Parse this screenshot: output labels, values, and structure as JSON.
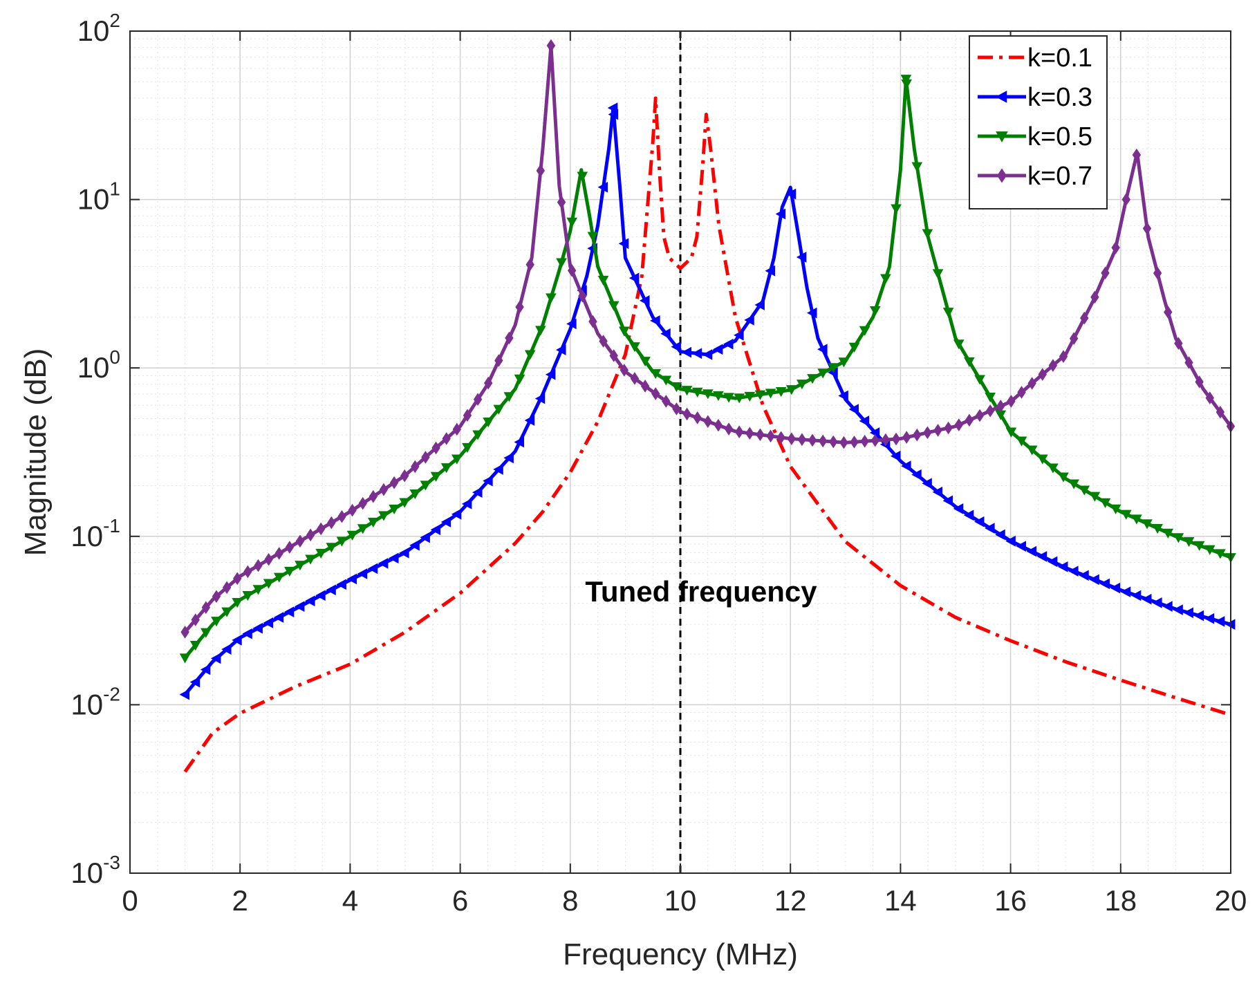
{
  "chart_data": {
    "type": "line",
    "title": "",
    "xlabel": "Frequency (MHz)",
    "ylabel": "Magnitude (dB)",
    "xlim": [
      0,
      20
    ],
    "ylim": [
      0.001,
      100
    ],
    "yscale": "log",
    "grid": true,
    "minor_grid": true,
    "legend_position": "top-right",
    "xticks": [
      0,
      2,
      4,
      6,
      8,
      10,
      12,
      14,
      16,
      18,
      20
    ],
    "yticks": [
      {
        "base": "10",
        "exp": "-3",
        "value": 0.001
      },
      {
        "base": "10",
        "exp": "-2",
        "value": 0.01
      },
      {
        "base": "10",
        "exp": "-1",
        "value": 0.1
      },
      {
        "base": "10",
        "exp": "0",
        "value": 1
      },
      {
        "base": "10",
        "exp": "1",
        "value": 10
      },
      {
        "base": "10",
        "exp": "2",
        "value": 100
      }
    ],
    "annotation": {
      "text": "Tuned frequency",
      "x": 10
    },
    "vline": {
      "x": 10,
      "style": "dashed",
      "color": "#000000"
    },
    "series": [
      {
        "name": "k=0.1",
        "color": "#ff0000",
        "style": "dashdot",
        "marker": "none",
        "points": [
          [
            1,
            0.004
          ],
          [
            1.5,
            0.0068
          ],
          [
            2,
            0.0089
          ],
          [
            3,
            0.0128
          ],
          [
            4,
            0.0174
          ],
          [
            5,
            0.027
          ],
          [
            6,
            0.046
          ],
          [
            7,
            0.091
          ],
          [
            7.5,
            0.14
          ],
          [
            8,
            0.24
          ],
          [
            8.5,
            0.48
          ],
          [
            9,
            1.2
          ],
          [
            9.3,
            3.5
          ],
          [
            9.5,
            22
          ],
          [
            9.55,
            40
          ],
          [
            9.62,
            15
          ],
          [
            9.7,
            6
          ],
          [
            9.8,
            4.5
          ],
          [
            10,
            3.9
          ],
          [
            10.2,
            4.5
          ],
          [
            10.3,
            6
          ],
          [
            10.4,
            15
          ],
          [
            10.47,
            32
          ],
          [
            10.55,
            20
          ],
          [
            10.7,
            7
          ],
          [
            11,
            2
          ],
          [
            11.5,
            0.6
          ],
          [
            12,
            0.26
          ],
          [
            13,
            0.093
          ],
          [
            14,
            0.051
          ],
          [
            15,
            0.033
          ],
          [
            16,
            0.024
          ],
          [
            17,
            0.018
          ],
          [
            18,
            0.014
          ],
          [
            19,
            0.011
          ],
          [
            20,
            0.0087
          ]
        ]
      },
      {
        "name": "k=0.3",
        "color": "#0000ff",
        "style": "solid",
        "marker": "triangle-left",
        "points": [
          [
            1,
            0.0115
          ],
          [
            1.5,
            0.018
          ],
          [
            2,
            0.025
          ],
          [
            3,
            0.037
          ],
          [
            4,
            0.055
          ],
          [
            5,
            0.08
          ],
          [
            6,
            0.14
          ],
          [
            7,
            0.32
          ],
          [
            7.5,
            0.7
          ],
          [
            8,
            1.7
          ],
          [
            8.3,
            3.5
          ],
          [
            8.5,
            7
          ],
          [
            8.7,
            20
          ],
          [
            8.78,
            35
          ],
          [
            8.9,
            12
          ],
          [
            9,
            4.5
          ],
          [
            9.5,
            2
          ],
          [
            10,
            1.25
          ],
          [
            10.5,
            1.2
          ],
          [
            11,
            1.45
          ],
          [
            11.5,
            2.5
          ],
          [
            11.7,
            4.5
          ],
          [
            11.85,
            9
          ],
          [
            12,
            11.8
          ],
          [
            12.15,
            6
          ],
          [
            12.3,
            3
          ],
          [
            12.5,
            1.5
          ],
          [
            13,
            0.65
          ],
          [
            14,
            0.28
          ],
          [
            15,
            0.15
          ],
          [
            16,
            0.094
          ],
          [
            17,
            0.065
          ],
          [
            18,
            0.048
          ],
          [
            19,
            0.037
          ],
          [
            20,
            0.03
          ]
        ]
      },
      {
        "name": "k=0.5",
        "color": "#008000",
        "style": "solid",
        "marker": "triangle-down",
        "points": [
          [
            1,
            0.019
          ],
          [
            1.5,
            0.03
          ],
          [
            2,
            0.042
          ],
          [
            3,
            0.065
          ],
          [
            4,
            0.1
          ],
          [
            5,
            0.16
          ],
          [
            6,
            0.3
          ],
          [
            7,
            0.75
          ],
          [
            7.5,
            1.8
          ],
          [
            7.8,
            3.8
          ],
          [
            8,
            6.5
          ],
          [
            8.2,
            15
          ],
          [
            8.35,
            8
          ],
          [
            8.5,
            4
          ],
          [
            9,
            1.6
          ],
          [
            9.5,
            0.95
          ],
          [
            10,
            0.75
          ],
          [
            11,
            0.66
          ],
          [
            12,
            0.74
          ],
          [
            13,
            1.1
          ],
          [
            13.5,
            2
          ],
          [
            13.8,
            4
          ],
          [
            14,
            15
          ],
          [
            14.1,
            52
          ],
          [
            14.25,
            20
          ],
          [
            14.5,
            6
          ],
          [
            15,
            1.5
          ],
          [
            16,
            0.42
          ],
          [
            17,
            0.22
          ],
          [
            18,
            0.14
          ],
          [
            19,
            0.1
          ],
          [
            20,
            0.075
          ]
        ]
      },
      {
        "name": "k=0.7",
        "color": "#7b2f8f",
        "style": "solid",
        "marker": "diamond",
        "points": [
          [
            1,
            0.027
          ],
          [
            1.5,
            0.042
          ],
          [
            2,
            0.058
          ],
          [
            3,
            0.09
          ],
          [
            4,
            0.14
          ],
          [
            5,
            0.23
          ],
          [
            6,
            0.45
          ],
          [
            6.5,
            0.8
          ],
          [
            7,
            1.8
          ],
          [
            7.3,
            4.5
          ],
          [
            7.5,
            20
          ],
          [
            7.65,
            82
          ],
          [
            7.8,
            12
          ],
          [
            8,
            4
          ],
          [
            8.5,
            1.6
          ],
          [
            9,
            0.95
          ],
          [
            10,
            0.55
          ],
          [
            11,
            0.42
          ],
          [
            12,
            0.38
          ],
          [
            13,
            0.36
          ],
          [
            14,
            0.38
          ],
          [
            15,
            0.45
          ],
          [
            16,
            0.63
          ],
          [
            17,
            1.2
          ],
          [
            17.5,
            2.5
          ],
          [
            17.9,
            5
          ],
          [
            18.1,
            10
          ],
          [
            18.3,
            19
          ],
          [
            18.5,
            6
          ],
          [
            18.8,
            2.5
          ],
          [
            19,
            1.5
          ],
          [
            19.5,
            0.75
          ],
          [
            20,
            0.45
          ]
        ]
      }
    ]
  }
}
